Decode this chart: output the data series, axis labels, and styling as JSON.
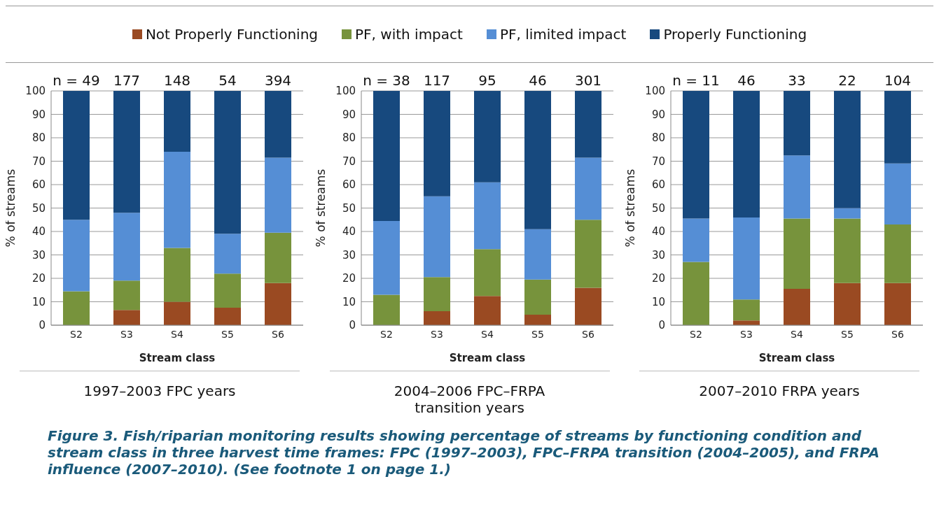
{
  "chart_data": [
    {
      "type": "bar",
      "stacked": true,
      "title": "1997–2003 FPC years",
      "xlabel": "Stream class",
      "ylabel": "% of streams",
      "categories": [
        "S2",
        "S3",
        "S4",
        "S5",
        "S6"
      ],
      "ylim": [
        0,
        100
      ],
      "yticks": [
        0,
        10,
        20,
        30,
        40,
        50,
        60,
        70,
        80,
        90,
        100
      ],
      "grid": "y",
      "legend": "top",
      "series": [
        {
          "name": "Not Properly Functioning",
          "color": "#9a4a22",
          "values": [
            0,
            6.5,
            10,
            7.5,
            18
          ]
        },
        {
          "name": "PF, with impact",
          "color": "#77933c",
          "values": [
            14.5,
            12.5,
            23,
            14.5,
            21.5
          ]
        },
        {
          "name": "PF, limited impact",
          "color": "#558ed5",
          "values": [
            30.5,
            29,
            41,
            17,
            32
          ]
        },
        {
          "name": "Properly Functioning",
          "color": "#17497e",
          "values": [
            55,
            52,
            26,
            61,
            28.5
          ]
        }
      ],
      "annotations": [
        "n = 49",
        "177",
        "148",
        "54",
        "394",
        "Figure 3. Fish/riparian monitoring results showing percentage of streams by functioning condition and stream class in three harvest time frames: FPC (1997–2003), FPC–FRPA transition (2004–2005), and FRPA influence (2007–2010). (See footnote 1 on page 1.)"
      ]
    },
    {
      "type": "bar",
      "stacked": true,
      "title": "2004–2006 FPC–FRPA transition years",
      "xlabel": "Stream class",
      "ylabel": "% of streams",
      "categories": [
        "S2",
        "S3",
        "S4",
        "S5",
        "S6"
      ],
      "ylim": [
        0,
        100
      ],
      "yticks": [
        0,
        10,
        20,
        30,
        40,
        50,
        60,
        70,
        80,
        90,
        100
      ],
      "grid": "y",
      "series": [
        {
          "color": "#9a4a22",
          "values": [
            0,
            6,
            12.5,
            4.5,
            16
          ]
        },
        {
          "color": "#77933c",
          "values": [
            13,
            14.5,
            20,
            15,
            29
          ]
        },
        {
          "color": "#558ed5",
          "values": [
            31.5,
            34.5,
            28.5,
            21.5,
            26.5
          ]
        },
        {
          "color": "#17497e",
          "values": [
            55.5,
            45,
            39,
            59,
            28.5
          ]
        }
      ],
      "annotations": [
        "n = 38",
        "117",
        "95",
        "46",
        "301"
      ]
    },
    {
      "type": "bar",
      "stacked": true,
      "title": "2007–2010 FRPA years",
      "xlabel": "Stream class",
      "ylabel": "% of streams",
      "categories": [
        "S2",
        "S3",
        "S4",
        "S5",
        "S6"
      ],
      "ylim": [
        0,
        100
      ],
      "yticks": [
        0,
        10,
        20,
        30,
        40,
        50,
        60,
        70,
        80,
        90,
        100
      ],
      "grid": "y",
      "series": [
        {
          "color": "#9a4a22",
          "values": [
            0,
            2,
            15.5,
            18,
            18
          ]
        },
        {
          "color": "#77933c",
          "values": [
            27,
            9,
            30,
            27.5,
            25
          ]
        },
        {
          "color": "#558ed5",
          "values": [
            18.5,
            35,
            27,
            4.5,
            26
          ]
        },
        {
          "color": "#17497e",
          "values": [
            54.5,
            54,
            27.5,
            50,
            31
          ]
        }
      ],
      "annotations": [
        "n = 11",
        "46",
        "33",
        "22",
        "104"
      ]
    }
  ]
}
